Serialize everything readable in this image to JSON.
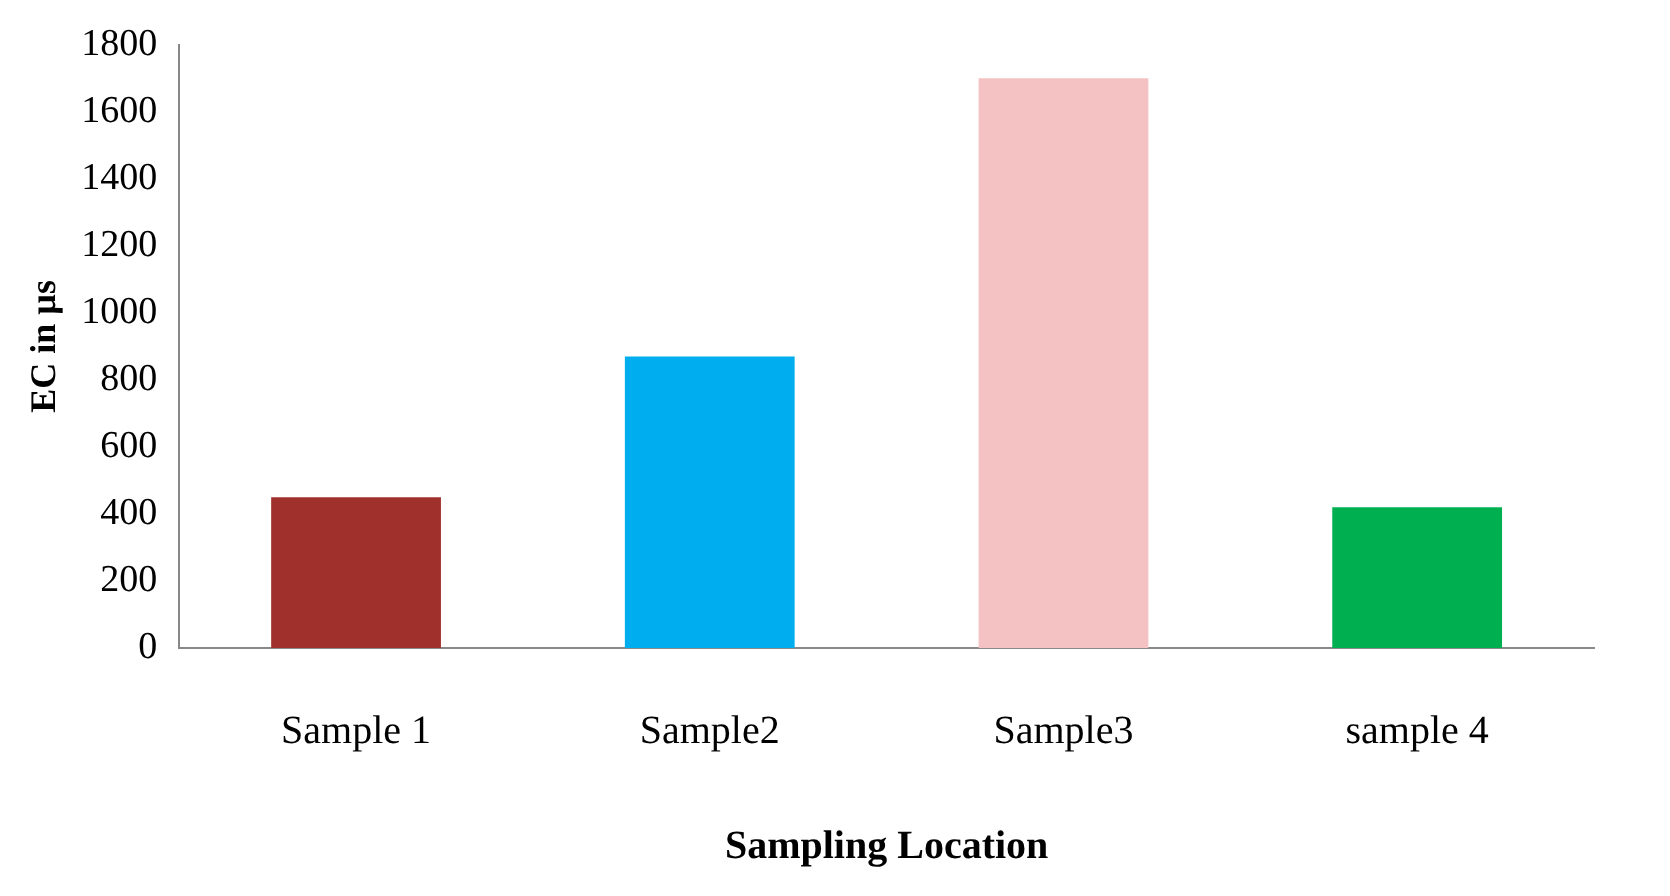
{
  "chart_data": {
    "type": "bar",
    "xlabel": "Sampling Location",
    "ylabel": "EC in µs",
    "categories": [
      "Sample 1",
      "Sample2",
      "Sample3",
      "sample 4"
    ],
    "values": [
      450,
      870,
      1700,
      420
    ],
    "colors": [
      "#a0302c",
      "#00aeef",
      "#f4c2c2",
      "#00b050"
    ],
    "ylim": [
      0,
      1800
    ],
    "yticks": [
      0,
      200,
      400,
      600,
      800,
      1000,
      1200,
      1400,
      1600,
      1800
    ],
    "grid": false,
    "legend": false
  }
}
